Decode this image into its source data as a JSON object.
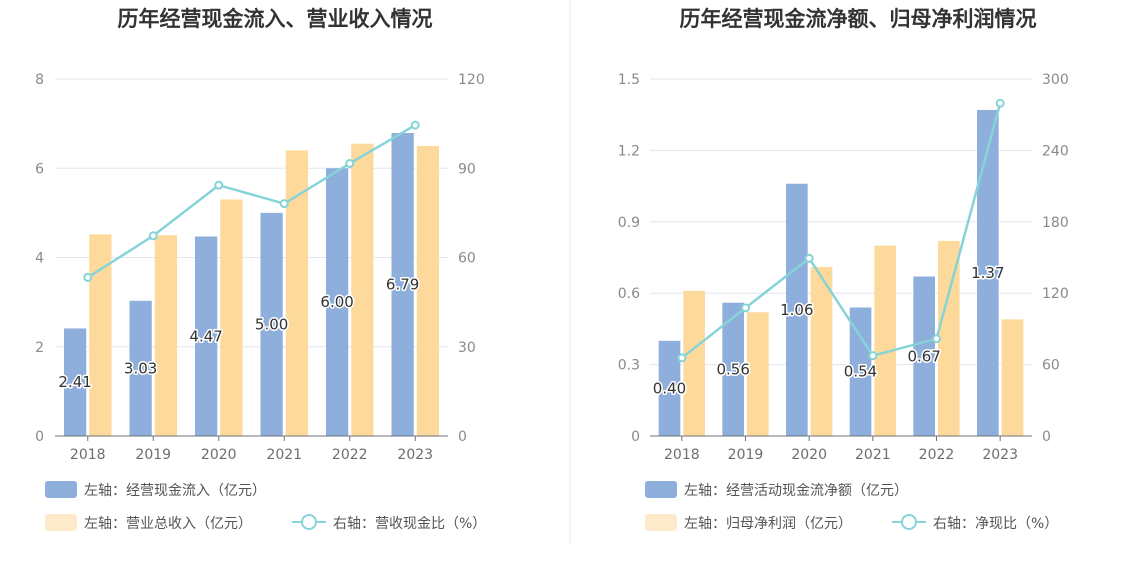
{
  "chart_data": [
    {
      "type": "bar",
      "title": "历年经营现金流入、营业收入情况",
      "categories": [
        "2018",
        "2019",
        "2020",
        "2021",
        "2022",
        "2023"
      ],
      "left_axis": {
        "ylim": [
          0,
          8
        ],
        "ticks": [
          "0",
          "2",
          "4",
          "6",
          "8"
        ]
      },
      "right_axis": {
        "ylim": [
          0,
          120
        ],
        "ticks": [
          "0",
          "30",
          "60",
          "90",
          "120"
        ]
      },
      "series": [
        {
          "name": "左轴：经营现金流入（亿元）",
          "kind": "bar",
          "axis": "left",
          "color": "#8eaedb",
          "values": [
            2.41,
            3.03,
            4.47,
            5.0,
            6.0,
            6.79
          ],
          "labels": [
            "2.41",
            "3.03",
            "4.47",
            "5.00",
            "6.00",
            "6.79"
          ]
        },
        {
          "name": "左轴：营业总收入（亿元）",
          "kind": "bar",
          "axis": "left",
          "color": "#fdd99c",
          "values": [
            4.52,
            4.5,
            5.3,
            6.4,
            6.55,
            6.5
          ]
        },
        {
          "name": "右轴：营收现金比（%）",
          "kind": "line",
          "axis": "right",
          "color": "#86d4d8",
          "values": [
            53.3,
            67.3,
            84.3,
            78.1,
            91.6,
            104.5
          ]
        }
      ]
    },
    {
      "type": "bar",
      "title": "历年经营现金流净额、归母净利润情况",
      "categories": [
        "2018",
        "2019",
        "2020",
        "2021",
        "2022",
        "2023"
      ],
      "left_axis": {
        "ylim": [
          0,
          1.5
        ],
        "ticks": [
          "0",
          "0.3",
          "0.6",
          "0.9",
          "1.2",
          "1.5"
        ]
      },
      "right_axis": {
        "ylim": [
          0,
          300
        ],
        "ticks": [
          "0",
          "60",
          "120",
          "180",
          "240",
          "300"
        ]
      },
      "series": [
        {
          "name": "左轴：经营活动现金流净额（亿元）",
          "kind": "bar",
          "axis": "left",
          "color": "#8eaedb",
          "values": [
            0.4,
            0.56,
            1.06,
            0.54,
            0.67,
            1.37
          ],
          "labels": [
            "0.40",
            "0.56",
            "1.06",
            "0.54",
            "0.67",
            "1.37"
          ]
        },
        {
          "name": "左轴：归母净利润（亿元）",
          "kind": "bar",
          "axis": "left",
          "color": "#fdd99c",
          "values": [
            0.61,
            0.52,
            0.71,
            0.8,
            0.82,
            0.49
          ]
        },
        {
          "name": "右轴：净现比（%）",
          "kind": "line",
          "axis": "right",
          "color": "#86d4d8",
          "values": [
            65.6,
            107.7,
            149.3,
            67.5,
            81.7,
            279.6
          ]
        }
      ]
    }
  ]
}
